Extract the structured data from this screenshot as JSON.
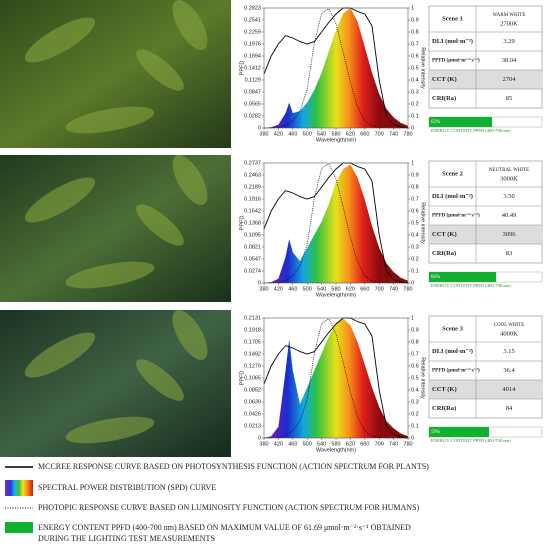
{
  "chart_data": [
    {
      "type": "spectrum",
      "x_label": "Wavelength(nm)",
      "y_label": "PPFD",
      "y2_label": "Relative intensity",
      "x": [
        380,
        400,
        420,
        440,
        450,
        460,
        480,
        500,
        520,
        540,
        560,
        580,
        600,
        620,
        640,
        660,
        680,
        700,
        720,
        740,
        760,
        780
      ],
      "xlim": [
        380,
        780
      ],
      "xticks": [
        380,
        420,
        460,
        500,
        540,
        580,
        620,
        660,
        700,
        740,
        780
      ],
      "ylim": [
        0,
        0.2823
      ],
      "yticks": [
        0,
        0.0282,
        0.0565,
        0.0847,
        0.1129,
        0.1412,
        0.1694,
        0.1976,
        0.2259,
        0.2541,
        0.2823
      ],
      "y2lim": [
        0,
        1
      ],
      "y2ticks": [
        0,
        0.1,
        0.2,
        0.3,
        0.4,
        0.5,
        0.6,
        0.7,
        0.8,
        0.9,
        1
      ],
      "series": [
        {
          "style": "spectrum",
          "values": [
            0,
            0.002,
            0.008,
            0.035,
            0.06,
            0.035,
            0.04,
            0.06,
            0.09,
            0.13,
            0.18,
            0.23,
            0.27,
            0.2823,
            0.25,
            0.19,
            0.13,
            0.08,
            0.045,
            0.025,
            0.012,
            0.005
          ]
        },
        {
          "style": "solid",
          "axis": "y2",
          "color": "#000000",
          "values": [
            0.45,
            0.6,
            0.7,
            0.77,
            0.76,
            0.75,
            0.72,
            0.7,
            0.72,
            0.8,
            0.88,
            0.95,
            1,
            1,
            0.97,
            0.95,
            0.85,
            0.4,
            0.1,
            0.03,
            0.01,
            0
          ]
        },
        {
          "style": "dotted",
          "axis": "y2",
          "color": "#000000",
          "values": [
            0,
            0,
            0.004,
            0.023,
            0.038,
            0.06,
            0.139,
            0.323,
            0.71,
            0.954,
            0.995,
            0.87,
            0.631,
            0.381,
            0.175,
            0.061,
            0.017,
            0.004,
            0.001,
            0,
            0,
            0
          ]
        }
      ]
    },
    {
      "type": "spectrum",
      "x_label": "Wavelength(nm)",
      "y_label": "PPFD",
      "y2_label": "Relative intensity",
      "x": [
        380,
        400,
        420,
        440,
        450,
        460,
        480,
        500,
        520,
        540,
        560,
        580,
        600,
        620,
        640,
        660,
        680,
        700,
        720,
        740,
        760,
        780
      ],
      "xlim": [
        380,
        780
      ],
      "xticks": [
        380,
        420,
        460,
        500,
        540,
        580,
        620,
        660,
        700,
        740,
        780
      ],
      "ylim": [
        0,
        0.2737
      ],
      "yticks": [
        0,
        0.0274,
        0.0547,
        0.0821,
        0.1095,
        0.1368,
        0.1642,
        0.1916,
        0.2189,
        0.2463,
        0.2737
      ],
      "y2lim": [
        0,
        1
      ],
      "y2ticks": [
        0,
        0.1,
        0.2,
        0.3,
        0.4,
        0.5,
        0.6,
        0.7,
        0.8,
        0.9,
        1
      ],
      "series": [
        {
          "style": "spectrum",
          "values": [
            0,
            0.002,
            0.01,
            0.06,
            0.1,
            0.07,
            0.05,
            0.08,
            0.11,
            0.14,
            0.18,
            0.23,
            0.26,
            0.27,
            0.24,
            0.19,
            0.13,
            0.08,
            0.045,
            0.025,
            0.012,
            0.005
          ]
        },
        {
          "style": "solid",
          "axis": "y2",
          "color": "#000000",
          "values": [
            0.45,
            0.6,
            0.7,
            0.77,
            0.76,
            0.75,
            0.72,
            0.7,
            0.72,
            0.8,
            0.88,
            0.95,
            1,
            1,
            0.97,
            0.95,
            0.85,
            0.4,
            0.1,
            0.03,
            0.01,
            0
          ]
        },
        {
          "style": "dotted",
          "axis": "y2",
          "color": "#000000",
          "values": [
            0,
            0,
            0.004,
            0.023,
            0.038,
            0.06,
            0.139,
            0.323,
            0.71,
            0.954,
            0.995,
            0.87,
            0.631,
            0.381,
            0.175,
            0.061,
            0.017,
            0.004,
            0.001,
            0,
            0,
            0
          ]
        }
      ]
    },
    {
      "type": "spectrum",
      "x_label": "Wavelength(nm)",
      "y_label": "PPFD",
      "y2_label": "Relative intensity",
      "x": [
        380,
        400,
        420,
        440,
        450,
        460,
        480,
        500,
        520,
        540,
        560,
        580,
        600,
        620,
        640,
        660,
        680,
        700,
        720,
        740,
        760,
        780
      ],
      "xlim": [
        380,
        780
      ],
      "xticks": [
        380,
        420,
        460,
        500,
        540,
        580,
        620,
        660,
        700,
        740,
        780
      ],
      "ylim": [
        0,
        0.2131
      ],
      "yticks": [
        0,
        0.0213,
        0.0426,
        0.0639,
        0.0852,
        0.1065,
        0.1279,
        0.1492,
        0.1705,
        0.1918,
        0.2131
      ],
      "y2lim": [
        0,
        1
      ],
      "y2ticks": [
        0,
        0.1,
        0.2,
        0.3,
        0.4,
        0.5,
        0.6,
        0.7,
        0.8,
        0.9,
        1
      ],
      "series": [
        {
          "style": "spectrum",
          "values": [
            0,
            0.003,
            0.02,
            0.12,
            0.175,
            0.12,
            0.06,
            0.09,
            0.12,
            0.15,
            0.18,
            0.205,
            0.212,
            0.2,
            0.17,
            0.13,
            0.09,
            0.055,
            0.03,
            0.017,
            0.008,
            0.003
          ]
        },
        {
          "style": "solid",
          "axis": "y2",
          "color": "#000000",
          "values": [
            0.45,
            0.6,
            0.7,
            0.77,
            0.76,
            0.75,
            0.72,
            0.7,
            0.72,
            0.8,
            0.88,
            0.95,
            1,
            1,
            0.97,
            0.95,
            0.85,
            0.4,
            0.1,
            0.03,
            0.01,
            0
          ]
        },
        {
          "style": "dotted",
          "axis": "y2",
          "color": "#000000",
          "values": [
            0,
            0,
            0.004,
            0.023,
            0.038,
            0.06,
            0.139,
            0.323,
            0.71,
            0.954,
            0.995,
            0.87,
            0.631,
            0.381,
            0.175,
            0.061,
            0.017,
            0.004,
            0.001,
            0,
            0,
            0
          ]
        }
      ]
    }
  ],
  "scenes": [
    {
      "title": "Scene 1",
      "type": "WARM WHITE",
      "temp": "2700K",
      "rows": [
        [
          "DLI (mol·m⁻²)",
          "3.29"
        ],
        [
          "PPFD (μmol·m⁻²·s⁻¹)",
          "38.04"
        ],
        [
          "CCT (K)",
          "2704"
        ],
        [
          "CRI(Ra)",
          "85"
        ]
      ],
      "energy": 62,
      "energy_label": "62%",
      "energy_caption": "ENERGY CONTENT PPFD (400-700 nm)"
    },
    {
      "title": "Scene 2",
      "type": "NEUTRAL WHITE",
      "temp": "3000K",
      "rows": [
        [
          "DLI (mol·m⁻²)",
          "3.50"
        ],
        [
          "PPFD (μmol·m⁻²·s⁻¹)",
          "40.49"
        ],
        [
          "CCT (K)",
          "3096"
        ],
        [
          "CRI(Ra)",
          "83"
        ]
      ],
      "energy": 66,
      "energy_label": "66%",
      "energy_caption": "ENERGY CONTENT PPFD (400-700 nm)"
    },
    {
      "title": "Scene 3",
      "type": "COOL WHITE",
      "temp": "4000K",
      "rows": [
        [
          "DLI (mol·m⁻²)",
          "3.15"
        ],
        [
          "PPFD (μmol·m⁻²·s⁻¹)",
          "36.4"
        ],
        [
          "CCT (K)",
          "4014"
        ],
        [
          "CRI(Ra)",
          "84"
        ]
      ],
      "energy": 59,
      "energy_label": "59%",
      "energy_caption": "ENERGY CONTENT PPFD (400-700 nm)"
    }
  ],
  "legend": [
    "MCCREE RESPONSE CURVE BASED ON PHOTOSYNTHESIS FUNCTION (ACTION SPECTRUM FOR PLANTS)",
    "SPECTRAL POWER DISTRIBUTION (SPD) CURVE",
    "PHOTOPIC RESPONSE CURVE BASED ON LUMINOSITY FUNCTION (ACTION SPECTRUM FOR HUMANS)",
    "ENERGY CONTENT PPFD (400-700 nm) BASED ON MAXIMUM VALUE OF 61.69 μmol·m⁻²·s⁻¹ OBTAINED",
    "DURING THE LIGHTING TEST MEASUREMENTS"
  ]
}
